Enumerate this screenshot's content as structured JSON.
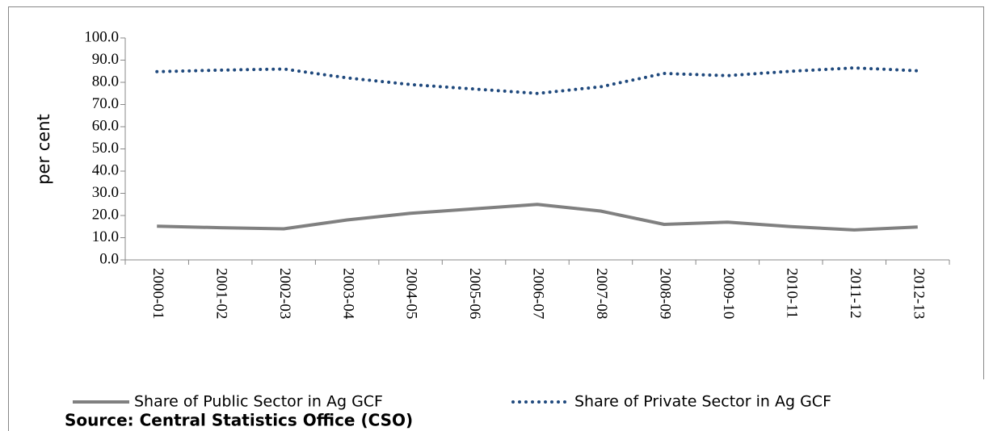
{
  "chart_data": {
    "type": "line",
    "axis_label_y": "per cent",
    "source": "Source: Central Statistics Office (CSO)",
    "categories": [
      "2000-01",
      "2001-02",
      "2002-03",
      "2003-04",
      "2004-05",
      "2005-06",
      "2006-07",
      "2007-08",
      "2008-09",
      "2009-10",
      "2010-11",
      "2011-12",
      "2012-13"
    ],
    "series": [
      {
        "name": "Share of Public Sector in Ag GCF",
        "color": "#808080",
        "style": "solid",
        "values": [
          15.2,
          14.5,
          14.0,
          18.0,
          21.0,
          23.0,
          25.0,
          22.0,
          16.0,
          17.0,
          15.0,
          13.5,
          14.8
        ]
      },
      {
        "name": "Share of Private Sector in Ag GCF",
        "color": "#1f497d",
        "style": "dotted",
        "values": [
          84.8,
          85.5,
          86.0,
          82.0,
          79.0,
          77.0,
          75.0,
          78.0,
          84.0,
          83.0,
          85.0,
          86.5,
          85.2
        ]
      }
    ],
    "ylim": [
      0,
      100
    ],
    "yticks": [
      {
        "value": 0,
        "label": "0.0"
      },
      {
        "value": 10,
        "label": "10.0"
      },
      {
        "value": 20,
        "label": "20.0"
      },
      {
        "value": 30,
        "label": "30.0"
      },
      {
        "value": 40,
        "label": "40.0"
      },
      {
        "value": 50,
        "label": "50.0"
      },
      {
        "value": 60,
        "label": "60.0"
      },
      {
        "value": 70,
        "label": "70.0"
      },
      {
        "value": 80,
        "label": "80.0"
      },
      {
        "value": 90,
        "label": "90.0"
      },
      {
        "value": 100,
        "label": "100.0"
      }
    ],
    "legend": "bottom"
  }
}
